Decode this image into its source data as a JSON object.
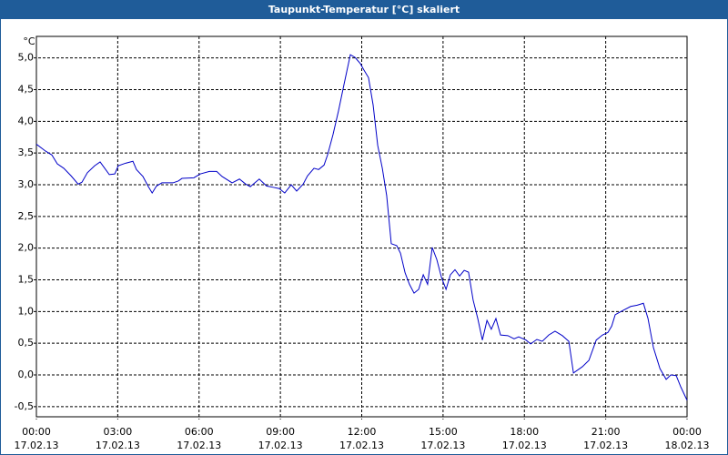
{
  "chart_data": {
    "type": "line",
    "title": "Taupunkt-Temperatur [°C] skaliert",
    "y_label": "°C",
    "color": "#0000c8",
    "grid": true,
    "xlim": [
      0,
      24
    ],
    "xticks": [
      {
        "value": 0,
        "label": "00:00",
        "date": "17.02.13"
      },
      {
        "value": 3,
        "label": "03:00",
        "date": "17.02.13"
      },
      {
        "value": 6,
        "label": "06:00",
        "date": "17.02.13"
      },
      {
        "value": 9,
        "label": "09:00",
        "date": "17.02.13"
      },
      {
        "value": 12,
        "label": "12:00",
        "date": "17.02.13"
      },
      {
        "value": 15,
        "label": "15:00",
        "date": "17.02.13"
      },
      {
        "value": 18,
        "label": "18:00",
        "date": "17.02.13"
      },
      {
        "value": 21,
        "label": "21:00",
        "date": "17.02.13"
      },
      {
        "value": 24,
        "label": "00:00",
        "date": "18.02.13"
      }
    ],
    "ylim": [
      -0.66,
      5.34
    ],
    "yticks": [
      {
        "value": -0.5,
        "label": "-0,5"
      },
      {
        "value": 0,
        "label": "0,0"
      },
      {
        "value": 0.5,
        "label": "0,5"
      },
      {
        "value": 1,
        "label": "1,0"
      },
      {
        "value": 1.5,
        "label": "1,5"
      },
      {
        "value": 2,
        "label": "2,0"
      },
      {
        "value": 2.5,
        "label": "2,5"
      },
      {
        "value": 3,
        "label": "3,0"
      },
      {
        "value": 3.5,
        "label": "3,5"
      },
      {
        "value": 4,
        "label": "4,0"
      },
      {
        "value": 4.5,
        "label": "4,5"
      },
      {
        "value": 5,
        "label": "5,0"
      }
    ],
    "x": [
      0,
      0.34,
      0.57,
      0.77,
      1.01,
      1.28,
      1.54,
      1.68,
      1.88,
      2.15,
      2.35,
      2.52,
      2.69,
      2.89,
      3.02,
      3.29,
      3.56,
      3.69,
      3.93,
      4.13,
      4.27,
      4.43,
      4.63,
      5.04,
      5.24,
      5.37,
      5.81,
      6.04,
      6.38,
      6.65,
      6.85,
      7.22,
      7.49,
      7.72,
      7.89,
      8.22,
      8.49,
      8.73,
      8.96,
      9.16,
      9.4,
      9.6,
      9.84,
      10,
      10.24,
      10.41,
      10.61,
      10.74,
      10.94,
      11.14,
      11.35,
      11.58,
      11.75,
      11.95,
      12.08,
      12.25,
      12.42,
      12.59,
      12.76,
      12.92,
      13.09,
      13.29,
      13.43,
      13.6,
      13.76,
      13.93,
      14.1,
      14.27,
      14.43,
      14.6,
      14.77,
      14.94,
      15.11,
      15.27,
      15.44,
      15.61,
      15.78,
      15.94,
      16.11,
      16.28,
      16.45,
      16.62,
      16.78,
      16.95,
      17.12,
      17.39,
      17.62,
      17.79,
      18.06,
      18.23,
      18.46,
      18.66,
      18.9,
      19.13,
      19.4,
      19.64,
      19.81,
      20.14,
      20.38,
      20.65,
      20.88,
      21.08,
      21.22,
      21.35,
      21.65,
      21.92,
      22.16,
      22.39,
      22.56,
      22.76,
      23,
      23.23,
      23.4,
      23.6,
      23.77,
      24
    ],
    "values": [
      3.64,
      3.53,
      3.47,
      3.33,
      3.26,
      3.14,
      3.01,
      3.04,
      3.19,
      3.3,
      3.36,
      3.26,
      3.16,
      3.17,
      3.3,
      3.34,
      3.37,
      3.24,
      3.13,
      2.97,
      2.87,
      2.98,
      3.03,
      3.03,
      3.06,
      3.1,
      3.11,
      3.17,
      3.21,
      3.21,
      3.13,
      3.03,
      3.09,
      3.01,
      2.97,
      3.09,
      2.98,
      2.96,
      2.94,
      2.87,
      3,
      2.9,
      3.01,
      3.14,
      3.26,
      3.24,
      3.31,
      3.47,
      3.79,
      4.16,
      4.59,
      5.05,
      5.01,
      4.91,
      4.81,
      4.69,
      4.26,
      3.62,
      3.26,
      2.83,
      2.07,
      2.04,
      1.92,
      1.61,
      1.43,
      1.29,
      1.35,
      1.58,
      1.43,
      2.01,
      1.82,
      1.54,
      1.35,
      1.58,
      1.66,
      1.56,
      1.65,
      1.62,
      1.18,
      0.89,
      0.55,
      0.86,
      0.72,
      0.89,
      0.63,
      0.62,
      0.57,
      0.6,
      0.55,
      0.49,
      0.56,
      0.53,
      0.63,
      0.69,
      0.62,
      0.53,
      0.03,
      0.13,
      0.23,
      0.55,
      0.63,
      0.67,
      0.77,
      0.95,
      1.02,
      1.08,
      1.1,
      1.13,
      0.89,
      0.43,
      0.1,
      -0.07,
      0,
      -0.01,
      -0.19,
      -0.4
    ]
  }
}
